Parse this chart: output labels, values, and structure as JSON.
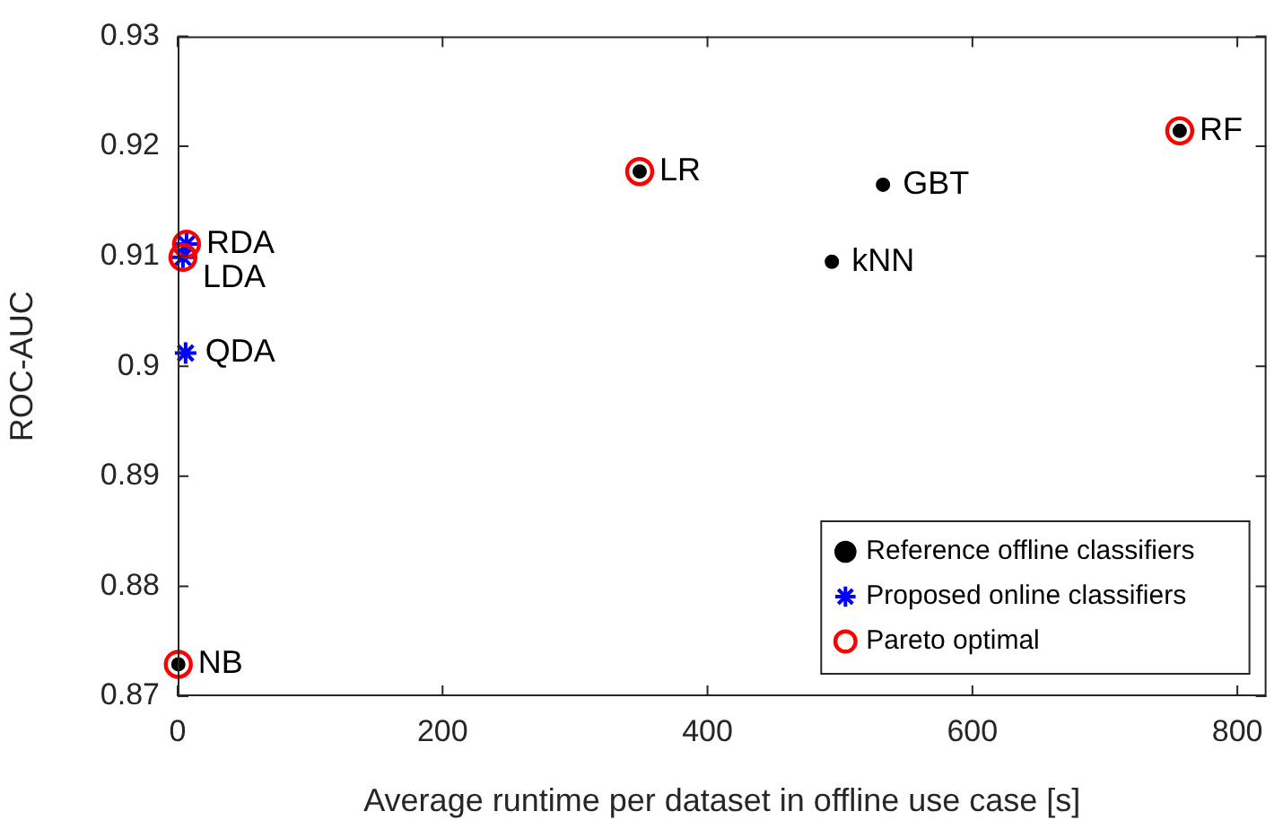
{
  "chart_data": {
    "type": "scatter",
    "xlabel": "Average runtime per dataset in offline use case [s]",
    "ylabel": "ROC-AUC",
    "xlim": [
      0,
      822
    ],
    "xticks": [
      0,
      200,
      400,
      600,
      800
    ],
    "ylim": [
      0.87,
      0.93
    ],
    "yticks": [
      0.87,
      0.88,
      0.89,
      0.9,
      0.91,
      0.92,
      0.93
    ],
    "legend": "bottom right",
    "series": [
      {
        "name": "Reference offline classifiers",
        "color": "#000000",
        "marker": "circle",
        "x": [
          0.5,
          348.8,
          493.9,
          532.5,
          756.5
        ],
        "values": [
          0.8729,
          0.9177,
          0.9095,
          0.9165,
          0.9214
        ]
      },
      {
        "name": "Proposed online classifiers",
        "color": "#0000ff",
        "marker": "cross",
        "x": [
          4,
          6.7,
          6
        ],
        "values": [
          0.9099,
          0.9111,
          0.9012
        ]
      },
      {
        "name": "Pareto optimal",
        "color": "#ff0000",
        "marker": "circle",
        "x": [
          0.5,
          4,
          6.7,
          348.8,
          756.5
        ],
        "values": [
          0.8729,
          0.9099,
          0.9111,
          0.9177,
          0.9214
        ]
      }
    ],
    "annotations": [
      {
        "text": "RF",
        "x": 756.5,
        "y": 0.9214
      },
      {
        "text": "LR",
        "x": 348.8,
        "y": 0.9177
      },
      {
        "text": "GBT",
        "x": 532.5,
        "y": 0.9165
      },
      {
        "text": "RDA",
        "x": 6.7,
        "y": 0.9111
      },
      {
        "text": "LDA",
        "x": 4,
        "y": 0.9099
      },
      {
        "text": "kNN",
        "x": 493.9,
        "y": 0.9095
      },
      {
        "text": "QDA",
        "x": 6,
        "y": 0.9012
      },
      {
        "text": "NB",
        "x": 0.5,
        "y": 0.8729
      }
    ]
  }
}
